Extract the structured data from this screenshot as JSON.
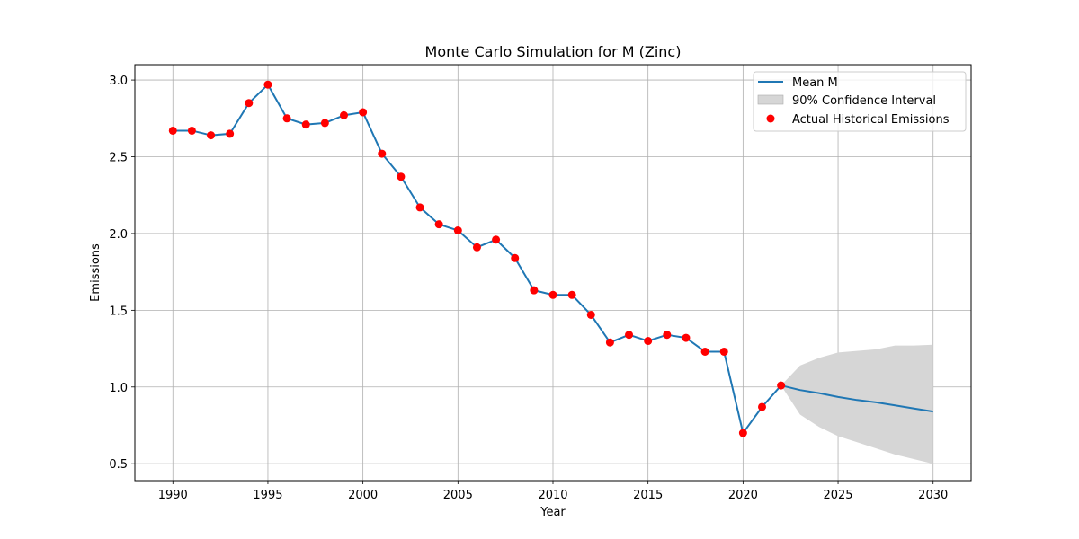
{
  "chart_data": {
    "type": "line",
    "title": "Monte Carlo Simulation for M (Zinc)",
    "xlabel": "Year",
    "ylabel": "Emissions",
    "xlim": [
      1988,
      2032
    ],
    "ylim": [
      0.39,
      3.1
    ],
    "xticks": [
      1990,
      1995,
      2000,
      2005,
      2010,
      2015,
      2020,
      2025,
      2030
    ],
    "yticks": [
      0.5,
      1.0,
      1.5,
      2.0,
      2.5,
      3.0
    ],
    "grid": true,
    "legend_position": "top-right",
    "series": [
      {
        "name": "Mean M",
        "kind": "line",
        "color": "#1f77b4",
        "x": [
          1990,
          1991,
          1992,
          1993,
          1994,
          1995,
          1996,
          1997,
          1998,
          1999,
          2000,
          2001,
          2002,
          2003,
          2004,
          2005,
          2006,
          2007,
          2008,
          2009,
          2010,
          2011,
          2012,
          2013,
          2014,
          2015,
          2016,
          2017,
          2018,
          2019,
          2020,
          2021,
          2022,
          2023,
          2024,
          2025,
          2026,
          2027,
          2028,
          2029,
          2030
        ],
        "y": [
          2.67,
          2.67,
          2.64,
          2.65,
          2.85,
          2.97,
          2.75,
          2.71,
          2.72,
          2.77,
          2.79,
          2.52,
          2.37,
          2.17,
          2.06,
          2.02,
          1.91,
          1.96,
          1.84,
          1.63,
          1.6,
          1.6,
          1.47,
          1.29,
          1.34,
          1.3,
          1.34,
          1.32,
          1.23,
          1.23,
          0.7,
          0.87,
          1.01,
          0.98,
          0.96,
          0.935,
          0.915,
          0.9,
          0.88,
          0.86,
          0.84
        ]
      },
      {
        "name": "90% Confidence Interval",
        "kind": "band",
        "color": "#d6d6d6",
        "x": [
          2022,
          2023,
          2024,
          2025,
          2026,
          2027,
          2028,
          2029,
          2030
        ],
        "lower": [
          1.01,
          0.82,
          0.74,
          0.68,
          0.64,
          0.6,
          0.56,
          0.53,
          0.5
        ],
        "upper": [
          1.01,
          1.14,
          1.19,
          1.225,
          1.235,
          1.245,
          1.27,
          1.27,
          1.275
        ]
      },
      {
        "name": "Actual Historical Emissions",
        "kind": "scatter",
        "color": "#ff0000",
        "x": [
          1990,
          1991,
          1992,
          1993,
          1994,
          1995,
          1996,
          1997,
          1998,
          1999,
          2000,
          2001,
          2002,
          2003,
          2004,
          2005,
          2006,
          2007,
          2008,
          2009,
          2010,
          2011,
          2012,
          2013,
          2014,
          2015,
          2016,
          2017,
          2018,
          2019,
          2020,
          2021,
          2022
        ],
        "y": [
          2.67,
          2.67,
          2.64,
          2.65,
          2.85,
          2.97,
          2.75,
          2.71,
          2.72,
          2.77,
          2.79,
          2.52,
          2.37,
          2.17,
          2.06,
          2.02,
          1.91,
          1.96,
          1.84,
          1.63,
          1.6,
          1.6,
          1.47,
          1.29,
          1.34,
          1.3,
          1.34,
          1.32,
          1.23,
          1.23,
          0.7,
          0.87,
          1.01
        ]
      }
    ]
  }
}
